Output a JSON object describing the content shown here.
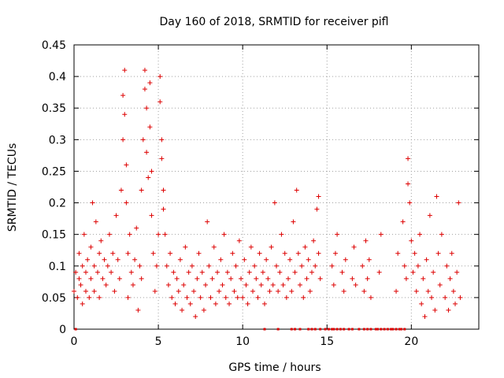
{
  "chart_data": {
    "type": "scatter",
    "title": "Day 160 of 2018, SRMTID for receiver pifl",
    "xlabel": "GPS time / hours",
    "ylabel": "SRMTID / TECUs",
    "xlim": [
      0,
      24
    ],
    "ylim": [
      0,
      0.45
    ],
    "xticks": [
      0,
      5,
      10,
      15,
      20
    ],
    "yticks": [
      0,
      0.05,
      0.1,
      0.15,
      0.2,
      0.25,
      0.3,
      0.35,
      0.4,
      0.45
    ],
    "xtick_labels": [
      "0",
      "5",
      "10",
      "15",
      "20"
    ],
    "ytick_labels": [
      "0",
      "0.05",
      "0.1",
      "0.15",
      "0.2",
      "0.25",
      "0.3",
      "0.35",
      "0.4",
      "0.45"
    ],
    "grid": true,
    "marker": "+",
    "color": "#dd0000",
    "series": [
      {
        "name": "SRMTID",
        "points": [
          [
            0.0,
            0.06
          ],
          [
            0.1,
            0.09
          ],
          [
            0.2,
            0.05
          ],
          [
            0.3,
            0.12
          ],
          [
            0.3,
            0.08
          ],
          [
            0.4,
            0.07
          ],
          [
            0.5,
            0.1
          ],
          [
            0.5,
            0.04
          ],
          [
            0.6,
            0.15
          ],
          [
            0.7,
            0.09
          ],
          [
            0.7,
            0.06
          ],
          [
            0.8,
            0.11
          ],
          [
            0.9,
            0.05
          ],
          [
            1.0,
            0.08
          ],
          [
            1.0,
            0.13
          ],
          [
            1.1,
            0.2
          ],
          [
            1.2,
            0.1
          ],
          [
            1.2,
            0.06
          ],
          [
            1.3,
            0.17
          ],
          [
            1.4,
            0.09
          ],
          [
            1.5,
            0.12
          ],
          [
            1.5,
            0.05
          ],
          [
            1.6,
            0.14
          ],
          [
            1.7,
            0.08
          ],
          [
            1.8,
            0.11
          ],
          [
            1.9,
            0.07
          ],
          [
            2.0,
            0.1
          ],
          [
            2.1,
            0.15
          ],
          [
            2.2,
            0.09
          ],
          [
            2.3,
            0.12
          ],
          [
            2.4,
            0.06
          ],
          [
            2.5,
            0.18
          ],
          [
            2.6,
            0.11
          ],
          [
            2.7,
            0.08
          ],
          [
            2.8,
            0.22
          ],
          [
            2.9,
            0.3
          ],
          [
            2.9,
            0.37
          ],
          [
            3.0,
            0.41
          ],
          [
            3.0,
            0.34
          ],
          [
            3.1,
            0.26
          ],
          [
            3.1,
            0.2
          ],
          [
            3.2,
            0.12
          ],
          [
            3.2,
            0.05
          ],
          [
            3.3,
            0.15
          ],
          [
            3.4,
            0.09
          ],
          [
            3.5,
            0.07
          ],
          [
            3.6,
            0.11
          ],
          [
            3.7,
            0.16
          ],
          [
            3.8,
            0.03
          ],
          [
            3.9,
            0.1
          ],
          [
            4.0,
            0.08
          ],
          [
            4.0,
            0.22
          ],
          [
            4.1,
            0.3
          ],
          [
            4.2,
            0.38
          ],
          [
            4.2,
            0.41
          ],
          [
            4.3,
            0.35
          ],
          [
            4.3,
            0.28
          ],
          [
            4.4,
            0.24
          ],
          [
            4.5,
            0.39
          ],
          [
            4.5,
            0.32
          ],
          [
            4.6,
            0.25
          ],
          [
            4.6,
            0.18
          ],
          [
            4.7,
            0.12
          ],
          [
            4.8,
            0.06
          ],
          [
            4.9,
            0.1
          ],
          [
            5.0,
            0.15
          ],
          [
            5.1,
            0.4
          ],
          [
            5.1,
            0.36
          ],
          [
            5.2,
            0.3
          ],
          [
            5.2,
            0.27
          ],
          [
            5.3,
            0.22
          ],
          [
            5.3,
            0.19
          ],
          [
            5.4,
            0.15
          ],
          [
            5.5,
            0.1
          ],
          [
            5.6,
            0.07
          ],
          [
            5.7,
            0.12
          ],
          [
            5.8,
            0.05
          ],
          [
            5.9,
            0.09
          ],
          [
            6.0,
            0.04
          ],
          [
            6.1,
            0.08
          ],
          [
            6.2,
            0.06
          ],
          [
            6.3,
            0.11
          ],
          [
            6.4,
            0.03
          ],
          [
            6.5,
            0.07
          ],
          [
            6.6,
            0.13
          ],
          [
            6.7,
            0.05
          ],
          [
            6.8,
            0.09
          ],
          [
            6.9,
            0.04
          ],
          [
            7.0,
            0.1
          ],
          [
            7.1,
            0.06
          ],
          [
            7.2,
            0.02
          ],
          [
            7.3,
            0.08
          ],
          [
            7.4,
            0.12
          ],
          [
            7.5,
            0.05
          ],
          [
            7.6,
            0.09
          ],
          [
            7.7,
            0.03
          ],
          [
            7.8,
            0.07
          ],
          [
            7.9,
            0.17
          ],
          [
            8.0,
            0.1
          ],
          [
            8.1,
            0.05
          ],
          [
            8.2,
            0.08
          ],
          [
            8.3,
            0.13
          ],
          [
            8.4,
            0.04
          ],
          [
            8.5,
            0.09
          ],
          [
            8.6,
            0.06
          ],
          [
            8.7,
            0.11
          ],
          [
            8.8,
            0.07
          ],
          [
            8.9,
            0.15
          ],
          [
            9.0,
            0.05
          ],
          [
            9.1,
            0.09
          ],
          [
            9.2,
            0.04
          ],
          [
            9.3,
            0.08
          ],
          [
            9.4,
            0.12
          ],
          [
            9.5,
            0.06
          ],
          [
            9.6,
            0.1
          ],
          [
            9.7,
            0.05
          ],
          [
            9.8,
            0.14
          ],
          [
            9.9,
            0.08
          ],
          [
            10.0,
            0.05
          ],
          [
            10.1,
            0.11
          ],
          [
            10.2,
            0.07
          ],
          [
            10.3,
            0.04
          ],
          [
            10.4,
            0.09
          ],
          [
            10.5,
            0.13
          ],
          [
            10.6,
            0.06
          ],
          [
            10.7,
            0.1
          ],
          [
            10.8,
            0.08
          ],
          [
            10.9,
            0.05
          ],
          [
            11.0,
            0.12
          ],
          [
            11.1,
            0.07
          ],
          [
            11.2,
            0.09
          ],
          [
            11.3,
            0.04
          ],
          [
            11.4,
            0.11
          ],
          [
            11.5,
            0.08
          ],
          [
            11.6,
            0.06
          ],
          [
            11.7,
            0.13
          ],
          [
            11.8,
            0.07
          ],
          [
            11.9,
            0.2
          ],
          [
            12.0,
            0.1
          ],
          [
            12.1,
            0.06
          ],
          [
            12.2,
            0.09
          ],
          [
            12.3,
            0.15
          ],
          [
            12.4,
            0.07
          ],
          [
            12.5,
            0.12
          ],
          [
            12.6,
            0.05
          ],
          [
            12.7,
            0.08
          ],
          [
            12.8,
            0.11
          ],
          [
            12.9,
            0.06
          ],
          [
            13.0,
            0.17
          ],
          [
            13.1,
            0.09
          ],
          [
            13.2,
            0.22
          ],
          [
            13.3,
            0.12
          ],
          [
            13.4,
            0.07
          ],
          [
            13.5,
            0.1
          ],
          [
            13.6,
            0.05
          ],
          [
            13.7,
            0.13
          ],
          [
            13.8,
            0.08
          ],
          [
            13.9,
            0.11
          ],
          [
            14.0,
            0.06
          ],
          [
            14.1,
            0.09
          ],
          [
            14.2,
            0.14
          ],
          [
            14.3,
            0.1
          ],
          [
            14.4,
            0.19
          ],
          [
            14.5,
            0.21
          ],
          [
            14.5,
            0.12
          ],
          [
            14.6,
            0.08
          ],
          [
            15.3,
            0.1
          ],
          [
            15.4,
            0.07
          ],
          [
            15.5,
            0.12
          ],
          [
            15.6,
            0.15
          ],
          [
            15.9,
            0.09
          ],
          [
            16.0,
            0.06
          ],
          [
            16.1,
            0.11
          ],
          [
            16.5,
            0.08
          ],
          [
            16.6,
            0.13
          ],
          [
            16.7,
            0.07
          ],
          [
            17.1,
            0.1
          ],
          [
            17.2,
            0.06
          ],
          [
            17.3,
            0.14
          ],
          [
            17.4,
            0.08
          ],
          [
            17.5,
            0.11
          ],
          [
            17.6,
            0.05
          ],
          [
            18.1,
            0.09
          ],
          [
            18.2,
            0.15
          ],
          [
            19.1,
            0.06
          ],
          [
            19.2,
            0.12
          ],
          [
            19.5,
            0.17
          ],
          [
            19.6,
            0.1
          ],
          [
            19.7,
            0.08
          ],
          [
            19.8,
            0.27
          ],
          [
            19.8,
            0.23
          ],
          [
            19.9,
            0.2
          ],
          [
            20.0,
            0.14
          ],
          [
            20.1,
            0.09
          ],
          [
            20.2,
            0.12
          ],
          [
            20.3,
            0.06
          ],
          [
            20.4,
            0.1
          ],
          [
            20.5,
            0.15
          ],
          [
            20.6,
            0.04
          ],
          [
            20.7,
            0.08
          ],
          [
            20.8,
            0.02
          ],
          [
            20.9,
            0.11
          ],
          [
            21.0,
            0.06
          ],
          [
            21.1,
            0.18
          ],
          [
            21.2,
            0.05
          ],
          [
            21.3,
            0.09
          ],
          [
            21.4,
            0.03
          ],
          [
            21.5,
            0.21
          ],
          [
            21.6,
            0.12
          ],
          [
            21.7,
            0.07
          ],
          [
            21.8,
            0.15
          ],
          [
            22.0,
            0.05
          ],
          [
            22.1,
            0.1
          ],
          [
            22.2,
            0.03
          ],
          [
            22.3,
            0.08
          ],
          [
            22.4,
            0.12
          ],
          [
            22.5,
            0.06
          ],
          [
            22.6,
            0.04
          ],
          [
            22.7,
            0.09
          ],
          [
            22.8,
            0.2
          ],
          [
            22.9,
            0.05
          ]
        ],
        "zero_points_x": [
          0.1,
          11.3,
          12.1,
          12.9,
          13.1,
          13.4,
          13.9,
          14.1,
          14.3,
          14.6,
          14.9,
          15.1,
          15.3,
          15.4,
          15.6,
          15.8,
          16.0,
          16.3,
          16.5,
          16.9,
          17.2,
          17.4,
          17.6,
          17.9,
          18.0,
          18.2,
          18.4,
          18.6,
          18.8,
          18.9,
          19.1,
          19.3,
          19.4,
          19.6
        ]
      }
    ]
  }
}
